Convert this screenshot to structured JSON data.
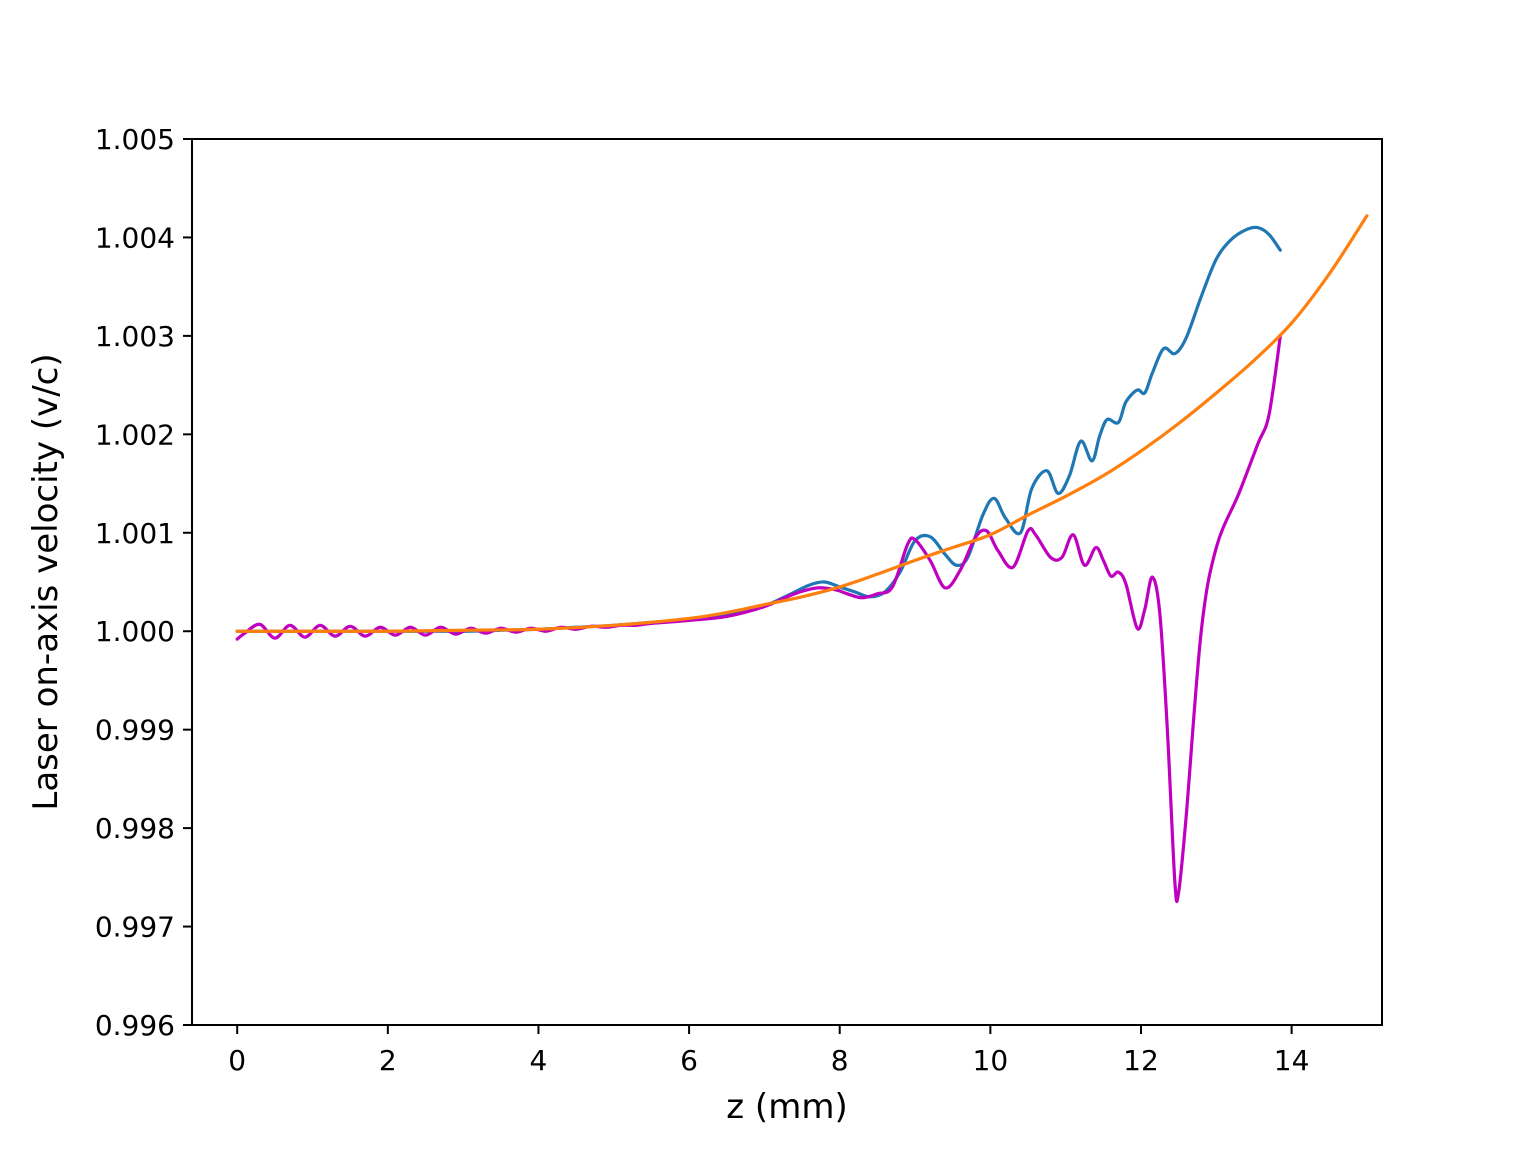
{
  "chart_data": {
    "type": "line",
    "title": "",
    "xlabel": "z (mm)",
    "ylabel": "Laser on-axis velocity (v/c)",
    "xlim": [
      -0.6,
      15.2
    ],
    "ylim": [
      0.996,
      1.005
    ],
    "xticks": [
      0,
      2,
      4,
      6,
      8,
      10,
      12,
      14
    ],
    "xtick_labels": [
      "0",
      "2",
      "4",
      "6",
      "8",
      "10",
      "12",
      "14"
    ],
    "yticks": [
      0.996,
      0.997,
      0.998,
      0.999,
      1.0,
      1.001,
      1.002,
      1.003,
      1.004,
      1.005
    ],
    "ytick_labels": [
      "0.996",
      "0.997",
      "0.998",
      "0.999",
      "1.000",
      "1.001",
      "1.002",
      "1.003",
      "1.004",
      "1.005"
    ],
    "grid": false,
    "series": [
      {
        "color": "#1f77b4",
        "x": [
          0,
          0.5,
          1,
          1.5,
          2,
          2.5,
          3,
          3.5,
          4,
          4.5,
          5,
          5.5,
          6,
          6.5,
          7,
          7.3,
          7.6,
          7.8,
          8.0,
          8.2,
          8.4,
          8.6,
          8.8,
          9.0,
          9.2,
          9.4,
          9.55,
          9.7,
          9.9,
          10.05,
          10.2,
          10.4,
          10.55,
          10.75,
          10.9,
          11.05,
          11.2,
          11.35,
          11.45,
          11.55,
          11.7,
          11.8,
          11.95,
          12.05,
          12.15,
          12.3,
          12.45,
          12.6,
          12.8,
          13.0,
          13.2,
          13.4,
          13.55,
          13.7,
          13.85
        ],
        "y": [
          1.0,
          1.0,
          1.0,
          1.0,
          1.0,
          1.0,
          1.0,
          1.00001,
          1.00002,
          1.00004,
          1.00006,
          1.00009,
          1.00012,
          1.00017,
          1.00026,
          1.00036,
          1.00047,
          1.0005,
          1.00045,
          1.0004,
          1.00035,
          1.0004,
          1.0006,
          1.00092,
          1.00096,
          1.00078,
          1.00067,
          1.00075,
          1.00118,
          1.00135,
          1.00115,
          1.001,
          1.00145,
          1.00163,
          1.0014,
          1.00158,
          1.00193,
          1.00173,
          1.00198,
          1.00215,
          1.00212,
          1.00233,
          1.00245,
          1.00242,
          1.00262,
          1.00287,
          1.00282,
          1.00298,
          1.0034,
          1.00378,
          1.00398,
          1.00408,
          1.0041,
          1.00403,
          1.00387
        ]
      },
      {
        "color": "#c000c0",
        "x": [
          0,
          0.1,
          0.3,
          0.5,
          0.7,
          0.9,
          1.1,
          1.3,
          1.5,
          1.7,
          1.9,
          2.1,
          2.3,
          2.5,
          2.7,
          2.9,
          3.1,
          3.3,
          3.5,
          3.7,
          3.9,
          4.1,
          4.3,
          4.5,
          4.7,
          4.9,
          5.1,
          5.3,
          5.5,
          6.0,
          6.5,
          7.0,
          7.4,
          7.7,
          7.95,
          8.1,
          8.3,
          8.5,
          8.7,
          8.9,
          9.0,
          9.2,
          9.4,
          9.6,
          9.8,
          9.95,
          10.1,
          10.3,
          10.5,
          10.6,
          10.8,
          10.95,
          11.1,
          11.25,
          11.4,
          11.5,
          11.6,
          11.7,
          11.8,
          11.95,
          12.05,
          12.15,
          12.25,
          12.35,
          12.45,
          12.5,
          12.6,
          12.8,
          13.0,
          13.3,
          13.55,
          13.7,
          13.85
        ],
        "y": [
          0.99992,
          0.99998,
          1.00007,
          0.99993,
          1.00006,
          0.99994,
          1.00006,
          0.99995,
          1.00005,
          0.99995,
          1.00004,
          0.99996,
          1.00004,
          0.99996,
          1.00004,
          0.99997,
          1.00003,
          0.99998,
          1.00003,
          0.99999,
          1.00003,
          1.0,
          1.00004,
          1.00002,
          1.00005,
          1.00004,
          1.00006,
          1.00006,
          1.00008,
          1.00011,
          1.00015,
          1.00025,
          1.00038,
          1.00044,
          1.00042,
          1.00038,
          1.00034,
          1.00038,
          1.00045,
          1.00088,
          1.00093,
          1.00072,
          1.00044,
          1.00062,
          1.00095,
          1.00102,
          1.00082,
          1.00065,
          1.00102,
          1.00098,
          1.00075,
          1.00075,
          1.00098,
          1.00067,
          1.00085,
          1.00072,
          1.00056,
          1.0006,
          1.00048,
          1.00003,
          1.00022,
          1.00055,
          1.00018,
          0.999,
          0.99745,
          0.99735,
          0.99812,
          1.0,
          1.00085,
          1.0014,
          1.0019,
          1.0022,
          1.003
        ]
      },
      {
        "color": "#ff7f0e",
        "x": [
          0,
          1,
          2,
          3,
          4,
          5,
          6,
          6.5,
          7,
          7.5,
          8,
          8.5,
          9,
          9.5,
          10,
          10.5,
          11,
          11.5,
          12,
          12.5,
          13,
          13.5,
          14,
          14.5,
          15
        ],
        "y": [
          1.0,
          1.0,
          1.0,
          1.00001,
          1.00002,
          1.00006,
          1.00013,
          1.00019,
          1.00027,
          1.00035,
          1.00045,
          1.00058,
          1.00072,
          1.00085,
          1.00098,
          1.00118,
          1.00137,
          1.00158,
          1.00183,
          1.00211,
          1.00242,
          1.00275,
          1.00313,
          1.00363,
          1.00422
        ]
      }
    ]
  }
}
